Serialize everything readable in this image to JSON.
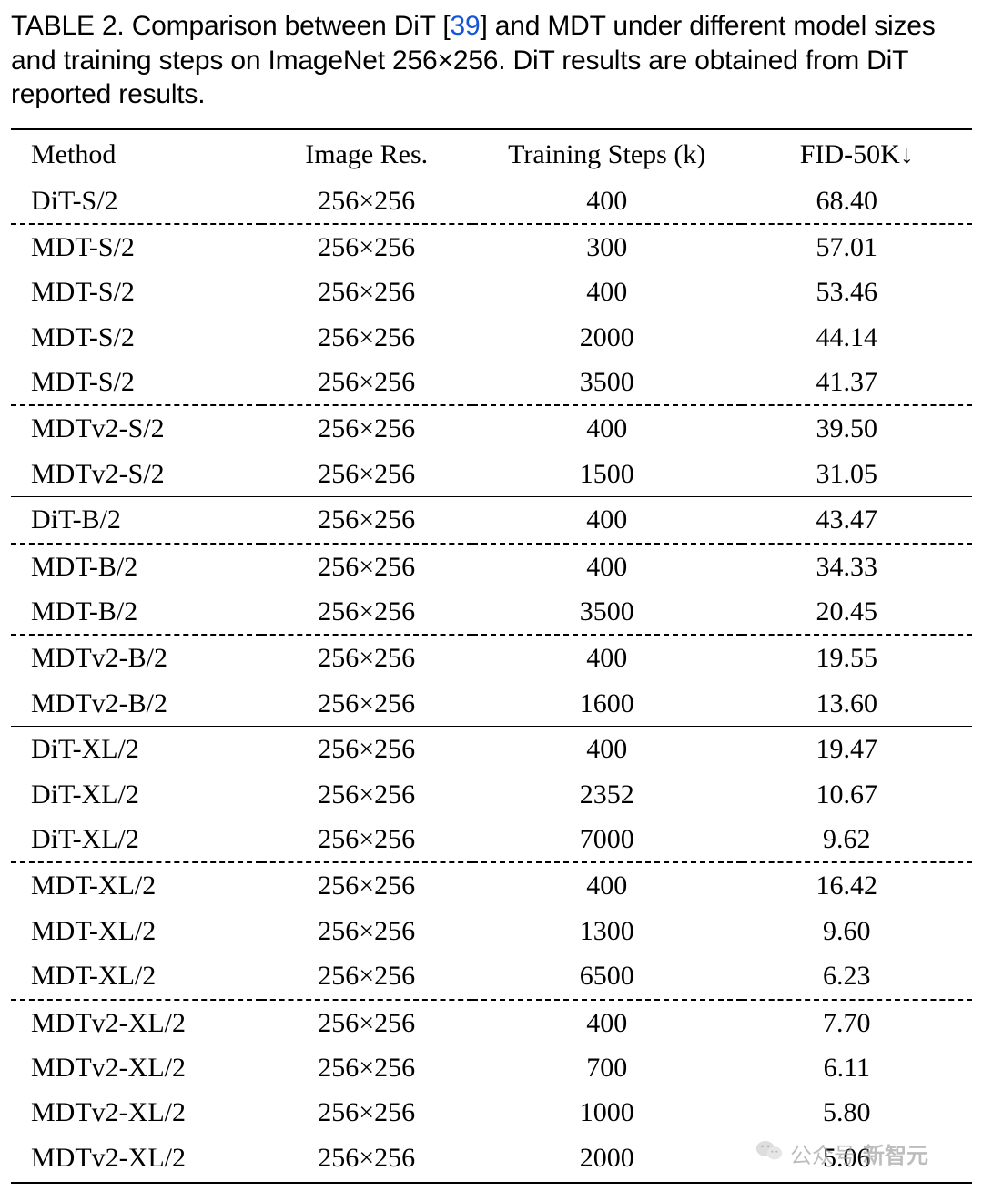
{
  "caption": {
    "label": "TABLE 2.",
    "pre_cite": " Comparison between DiT [",
    "cite": "39",
    "post_cite": "] and MDT under different model sizes and training steps on ImageNet 256×256. DiT results are obtained from DiT reported results."
  },
  "table": {
    "columns": [
      "Method",
      "Image Res.",
      "Training Steps (k)",
      "FID-50K↓"
    ],
    "col_widths_pct": [
      26,
      22,
      28,
      24
    ],
    "header_fontsize": 30,
    "body_fontsize": 30,
    "caption_fontsize": 30,
    "border_color": "#000000",
    "text_color": "#000000",
    "cite_color": "#1556d6",
    "background_color": "#ffffff",
    "rows": [
      {
        "sep": "none",
        "method": "DiT-S/2",
        "res": "256×256",
        "steps": "400",
        "fid": "68.40",
        "bold": false
      },
      {
        "sep": "dash",
        "method": "MDT-S/2",
        "res": "256×256",
        "steps": "300",
        "fid": "57.01",
        "bold": false
      },
      {
        "sep": "none",
        "method": "MDT-S/2",
        "res": "256×256",
        "steps": "400",
        "fid": "53.46",
        "bold": false
      },
      {
        "sep": "none",
        "method": "MDT-S/2",
        "res": "256×256",
        "steps": "2000",
        "fid": "44.14",
        "bold": false
      },
      {
        "sep": "none",
        "method": "MDT-S/2",
        "res": "256×256",
        "steps": "3500",
        "fid": "41.37",
        "bold": false
      },
      {
        "sep": "dash",
        "method": "MDTv2-S/2",
        "res": "256×256",
        "steps": "400",
        "fid": "39.50",
        "bold": false
      },
      {
        "sep": "none",
        "method": "MDTv2-S/2",
        "res": "256×256",
        "steps": "1500",
        "fid": "31.05",
        "bold": true
      },
      {
        "sep": "solid",
        "method": "DiT-B/2",
        "res": "256×256",
        "steps": "400",
        "fid": "43.47",
        "bold": false
      },
      {
        "sep": "dash",
        "method": "MDT-B/2",
        "res": "256×256",
        "steps": "400",
        "fid": "34.33",
        "bold": false
      },
      {
        "sep": "none",
        "method": "MDT-B/2",
        "res": "256×256",
        "steps": "3500",
        "fid": "20.45",
        "bold": false
      },
      {
        "sep": "dash",
        "method": "MDTv2-B/2",
        "res": "256×256",
        "steps": "400",
        "fid": "19.55",
        "bold": false
      },
      {
        "sep": "none",
        "method": "MDTv2-B/2",
        "res": "256×256",
        "steps": "1600",
        "fid": "13.60",
        "bold": true
      },
      {
        "sep": "solid",
        "method": "DiT-XL/2",
        "res": "256×256",
        "steps": "400",
        "fid": "19.47",
        "bold": false
      },
      {
        "sep": "none",
        "method": "DiT-XL/2",
        "res": "256×256",
        "steps": "2352",
        "fid": "10.67",
        "bold": false
      },
      {
        "sep": "none",
        "method": "DiT-XL/2",
        "res": "256×256",
        "steps": "7000",
        "fid": "9.62",
        "bold": false
      },
      {
        "sep": "dash",
        "method": "MDT-XL/2",
        "res": "256×256",
        "steps": "400",
        "fid": "16.42",
        "bold": false
      },
      {
        "sep": "none",
        "method": "MDT-XL/2",
        "res": "256×256",
        "steps": "1300",
        "fid": "9.60",
        "bold": false
      },
      {
        "sep": "none",
        "method": "MDT-XL/2",
        "res": "256×256",
        "steps": "6500",
        "fid": "6.23",
        "bold": false
      },
      {
        "sep": "dash",
        "method": "MDTv2-XL/2",
        "res": "256×256",
        "steps": "400",
        "fid": "7.70",
        "bold": false
      },
      {
        "sep": "none",
        "method": "MDTv2-XL/2",
        "res": "256×256",
        "steps": "700",
        "fid": "6.11",
        "bold": false
      },
      {
        "sep": "none",
        "method": "MDTv2-XL/2",
        "res": "256×256",
        "steps": "1000",
        "fid": "5.80",
        "bold": false
      },
      {
        "sep": "none",
        "method": "MDTv2-XL/2",
        "res": "256×256",
        "steps": "2000",
        "fid": "5.06",
        "bold": true
      }
    ]
  },
  "watermark": {
    "prefix": "公众号",
    "name": "新智元",
    "color": "#9a9a9a"
  }
}
